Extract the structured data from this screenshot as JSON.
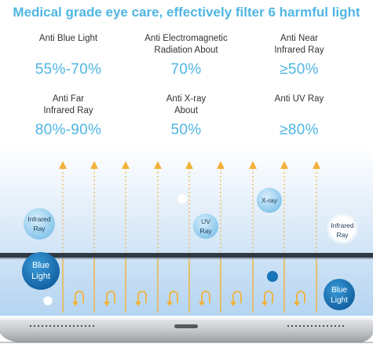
{
  "headline": "Medical grade eye care, effectively filter 6 harmful light",
  "stats": [
    {
      "label": [
        "Anti Blue Light"
      ],
      "value": "55%-70%"
    },
    {
      "label": [
        "Anti Electromagnetic",
        "Radiation About"
      ],
      "value": "70%"
    },
    {
      "label": [
        "Anti Near",
        "Infrared Ray"
      ],
      "value": "≥50%"
    },
    {
      "label": [
        "Anti Far",
        "Infrared Ray"
      ],
      "value": "80%-90%"
    },
    {
      "label": [
        "Anti X-ray",
        "About"
      ],
      "value": "50%"
    },
    {
      "label": [
        "Anti UV Ray"
      ],
      "value": "≥80%"
    }
  ],
  "bubbles": {
    "infrared_left": [
      "Infrared",
      "Ray"
    ],
    "uv": [
      "UV",
      "Ray"
    ],
    "xray": "X-ray",
    "infrared_right": [
      "Infrared",
      "Ray"
    ],
    "blue_left": [
      "Blue",
      "Light"
    ],
    "blue_right": [
      "Blue",
      "Light"
    ]
  },
  "colors": {
    "accent": "#4fb6e2",
    "arrow": "#f2b23a",
    "blue_bubble": "#1a74b8",
    "light_bubble": "#8ec9ea",
    "glass_top": "#eef5fb",
    "glass_bottom": "#b9d7f2"
  },
  "icons": [
    "up-arrow-icon",
    "u-turn-arrow-icon"
  ]
}
